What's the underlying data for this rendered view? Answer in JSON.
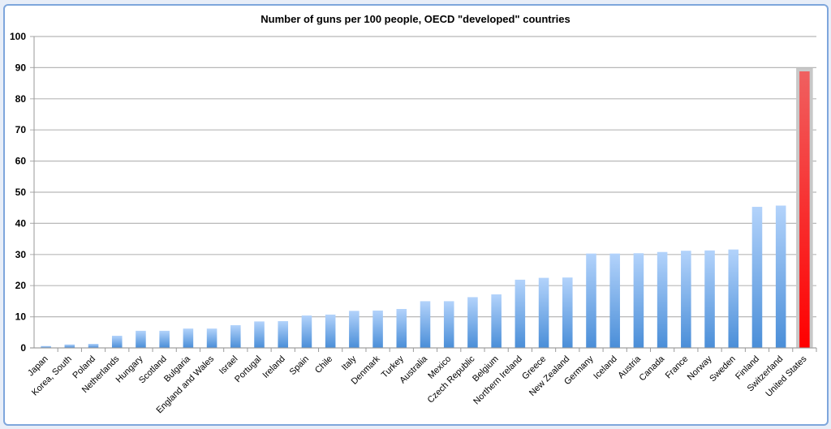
{
  "chart_data": {
    "type": "bar",
    "title": "Number of guns per 100 people, OECD \"developed\" countries",
    "xlabel": "",
    "ylabel": "",
    "ylim": [
      0,
      100
    ],
    "yticks": [
      "0",
      "10",
      "20",
      "30",
      "40",
      "50",
      "60",
      "70",
      "80",
      "90",
      "100"
    ],
    "grid": true,
    "categories": [
      "Japan",
      "Korea, South",
      "Poland",
      "Netherlands",
      "Hungary",
      "Scotland",
      "Bulgaria",
      "England and Wales",
      "Israel",
      "Portugal",
      "Ireland",
      "Spain",
      "Chile",
      "Italy",
      "Denmark",
      "Turkey",
      "Australia",
      "Mexico",
      "Czech Republic",
      "Belgium",
      "Northern Ireland",
      "Greece",
      "New Zealand",
      "Germany",
      "Iceland",
      "Austria",
      "Canada",
      "France",
      "Norway",
      "Sweden",
      "Finland",
      "Switzerland",
      "United States"
    ],
    "values": [
      0.6,
      1.1,
      1.3,
      3.9,
      5.5,
      5.5,
      6.2,
      6.2,
      7.3,
      8.5,
      8.6,
      10.4,
      10.7,
      11.9,
      12.0,
      12.5,
      15.0,
      15.0,
      16.3,
      17.2,
      21.9,
      22.5,
      22.6,
      30.3,
      30.3,
      30.4,
      30.8,
      31.2,
      31.3,
      31.6,
      45.3,
      45.7,
      88.8
    ],
    "bar_color": "#5b9be0",
    "highlight_color": "#ff0000",
    "highlight_category": "United States"
  }
}
